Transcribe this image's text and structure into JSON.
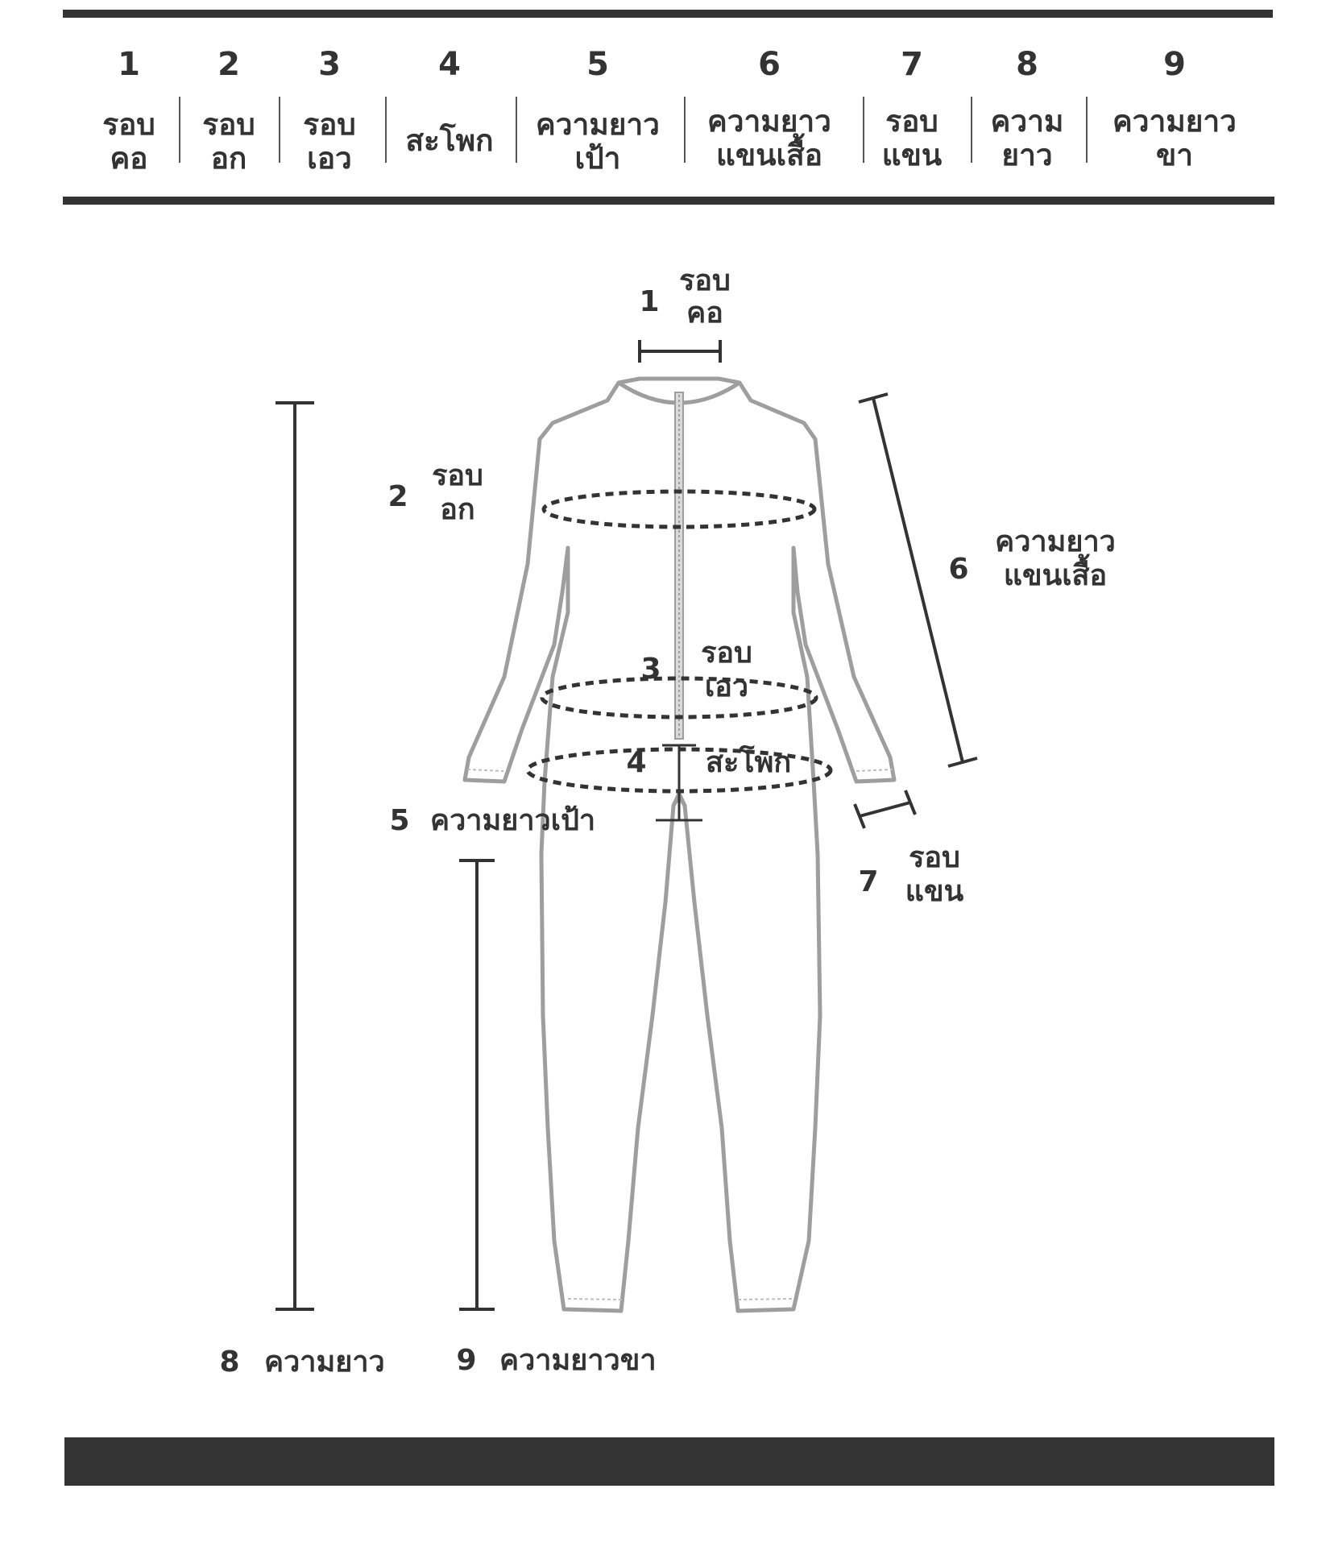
{
  "colors": {
    "bars": "#333333",
    "garment": "#9e9e9e",
    "text": "#333333"
  },
  "header": {
    "columns": [
      {
        "num": "1",
        "line1": "รอบ",
        "line2": "คอ"
      },
      {
        "num": "2",
        "line1": "รอบ",
        "line2": "อก"
      },
      {
        "num": "3",
        "line1": "รอบ",
        "line2": "เอว"
      },
      {
        "num": "4",
        "line1": "สะโพก",
        "line2": ""
      },
      {
        "num": "5",
        "line1": "ความยาว",
        "line2": "เป้า"
      },
      {
        "num": "6",
        "line1": "ความยาว",
        "line2": "แขนเสื้อ"
      },
      {
        "num": "7",
        "line1": "รอบ",
        "line2": "แขน"
      },
      {
        "num": "8",
        "line1": "ความ",
        "line2": "ยาว"
      },
      {
        "num": "9",
        "line1": "ความยาว",
        "line2": "ขา"
      }
    ]
  },
  "diagram": {
    "neck": {
      "num": "1",
      "line1": "รอบ",
      "line2": "คอ"
    },
    "chest": {
      "num": "2",
      "line1": "รอบ",
      "line2": "อก"
    },
    "waist": {
      "num": "3",
      "line1": "รอบ",
      "line2": "เอว"
    },
    "hip": {
      "num": "4",
      "label": "สะโพก"
    },
    "crotch": {
      "num": "5",
      "label": "ความยาวเป้า"
    },
    "sleeve": {
      "num": "6",
      "line1": "ความยาว",
      "line2": "แขนเสื้อ"
    },
    "arm": {
      "num": "7",
      "line1": "รอบ",
      "line2": "แขน"
    },
    "length": {
      "num": "8",
      "label": "ความยาว"
    },
    "inseam": {
      "num": "9",
      "label": "ความยาวขา"
    }
  }
}
